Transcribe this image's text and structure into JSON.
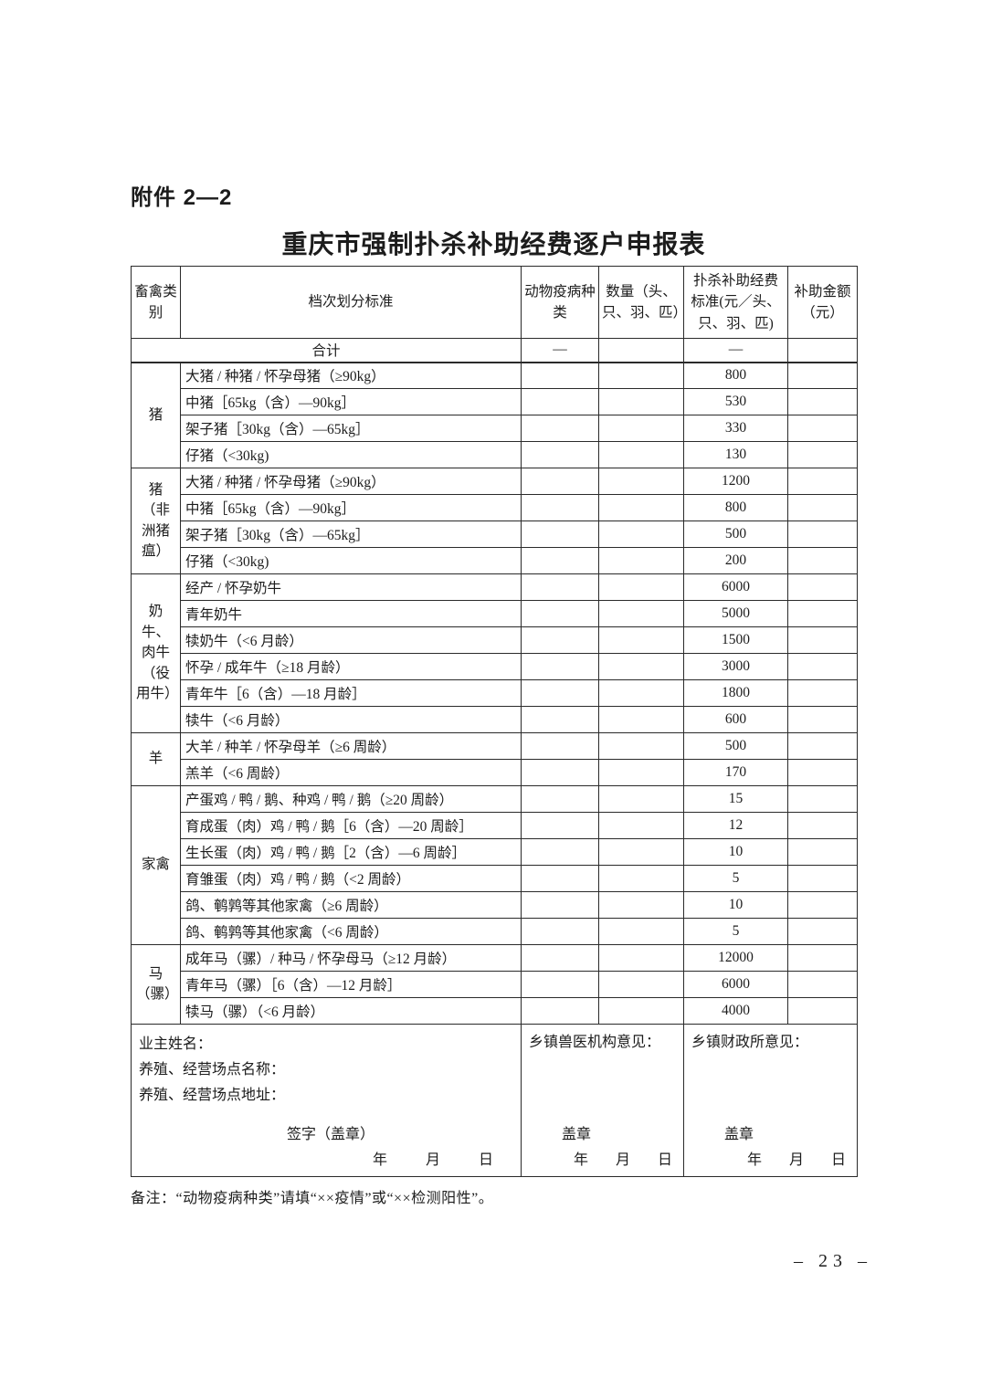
{
  "page": {
    "attachment_label": "附件 2—2",
    "title": "重庆市强制扑杀补助经费逐户申报表",
    "note": "备注：“动物疫病种类”请填“××疫情”或“××检测阳性”。",
    "page_number": "– 23 –"
  },
  "table": {
    "headers": [
      "畜禽类别",
      "档次划分标准",
      "动物疫病种类",
      "数量（头、只、羽、匹）",
      "扑杀补助经费标准(元／头、只、羽、匹)",
      "补助金额（元）"
    ],
    "total_row": {
      "label": "合计",
      "disease": "—",
      "quantity": "",
      "standard": "—",
      "amount": ""
    },
    "groups": [
      {
        "category": "猪",
        "rows": [
          {
            "grade": "大猪 / 种猪 / 怀孕母猪（≥90kg）",
            "standard": "800"
          },
          {
            "grade": "中猪［65kg（含）—90kg］",
            "standard": "530"
          },
          {
            "grade": "架子猪［30kg（含）—65kg］",
            "standard": "330"
          },
          {
            "grade": "仔猪（<30kg)",
            "standard": "130"
          }
        ]
      },
      {
        "category": "猪（非洲猪瘟）",
        "rows": [
          {
            "grade": "大猪 / 种猪 / 怀孕母猪（≥90kg）",
            "standard": "1200"
          },
          {
            "grade": "中猪［65kg（含）—90kg］",
            "standard": "800"
          },
          {
            "grade": "架子猪［30kg（含）—65kg］",
            "standard": "500"
          },
          {
            "grade": "仔猪（<30kg)",
            "standard": "200"
          }
        ]
      },
      {
        "category": "奶牛、肉牛（役用牛）",
        "rows": [
          {
            "grade": "经产 / 怀孕奶牛",
            "standard": "6000"
          },
          {
            "grade": "青年奶牛",
            "standard": "5000"
          },
          {
            "grade": "犊奶牛（<6 月龄）",
            "standard": "1500"
          },
          {
            "grade": "怀孕 / 成年牛（≥18 月龄）",
            "standard": "3000"
          },
          {
            "grade": "青年牛［6（含）—18 月龄］",
            "standard": "1800"
          },
          {
            "grade": "犊牛（<6 月龄）",
            "standard": "600"
          }
        ]
      },
      {
        "category": "羊",
        "rows": [
          {
            "grade": "大羊 / 种羊 / 怀孕母羊（≥6 周龄）",
            "standard": "500"
          },
          {
            "grade": "羔羊（<6 周龄）",
            "standard": "170"
          }
        ]
      },
      {
        "category": "家禽",
        "rows": [
          {
            "grade": "产蛋鸡 / 鸭 / 鹅、种鸡 / 鸭 / 鹅（≥20 周龄）",
            "standard": "15"
          },
          {
            "grade": "育成蛋（肉）鸡 / 鸭 / 鹅［6（含）—20 周龄］",
            "standard": "12"
          },
          {
            "grade": "生长蛋（肉）鸡 / 鸭 / 鹅［2（含）—6 周龄］",
            "standard": "10"
          },
          {
            "grade": "育雏蛋（肉）鸡 / 鸭 / 鹅（<2 周龄）",
            "standard": "5"
          },
          {
            "grade": "鸽、鹌鹑等其他家禽（≥6 周龄）",
            "standard": "10"
          },
          {
            "grade": "鸽、鹌鹑等其他家禽（<6 周龄）",
            "standard": "5"
          }
        ]
      },
      {
        "category": "马（骡）",
        "rows": [
          {
            "grade": "成年马（骡）/ 种马 / 怀孕母马（≥12 月龄）",
            "standard": "12000"
          },
          {
            "grade": "青年马（骡）［6（含）—12 月龄］",
            "standard": "6000"
          },
          {
            "grade": "犊马（骡）（<6 月龄）",
            "standard": "4000"
          }
        ]
      }
    ],
    "footer": {
      "owner_lines": [
        "业主姓名：",
        "养殖、经营场点名称：",
        "养殖、经营场点地址："
      ],
      "sign_label": "签字（盖章）",
      "vet_opinion": "乡镇兽医机构意见：",
      "finance_opinion": "乡镇财政所意见：",
      "seal_label": "盖章",
      "date_parts": [
        "年",
        "月",
        "日"
      ]
    }
  }
}
